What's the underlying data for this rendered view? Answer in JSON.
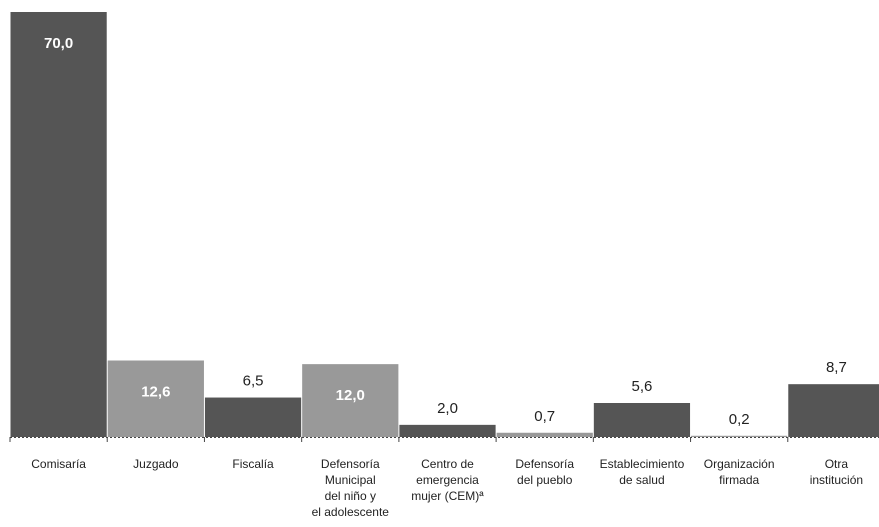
{
  "chart_data": {
    "type": "bar",
    "title": "",
    "xlabel": "",
    "ylabel": "",
    "ylim": [
      0,
      70
    ],
    "grid": false,
    "categories": [
      [
        "Comisaría"
      ],
      [
        "Juzgado"
      ],
      [
        "Fiscalía"
      ],
      [
        "Defensoría",
        "Municipal",
        "del niño y",
        "el adolescente"
      ],
      [
        "Centro de",
        "emergencia",
        "mujer (CEM)ª"
      ],
      [
        "Defensoría",
        "del pueblo"
      ],
      [
        "Establecimiento",
        "de salud"
      ],
      [
        "Organización",
        "firmada"
      ],
      [
        "Otra",
        "institución"
      ]
    ],
    "values": [
      70.0,
      12.6,
      6.5,
      12.0,
      2.0,
      0.7,
      5.6,
      0.2,
      8.7
    ],
    "value_labels": [
      "70,0",
      "12,6",
      "6,5",
      "12,0",
      "2,0",
      "0,7",
      "5,6",
      "0,2",
      "8,7"
    ],
    "colors": {
      "dark": "#555555",
      "light": "#999999",
      "axis": "#444444"
    },
    "bar_colors": [
      "dark",
      "light",
      "dark",
      "light",
      "dark",
      "light",
      "dark",
      "light",
      "dark"
    ]
  }
}
